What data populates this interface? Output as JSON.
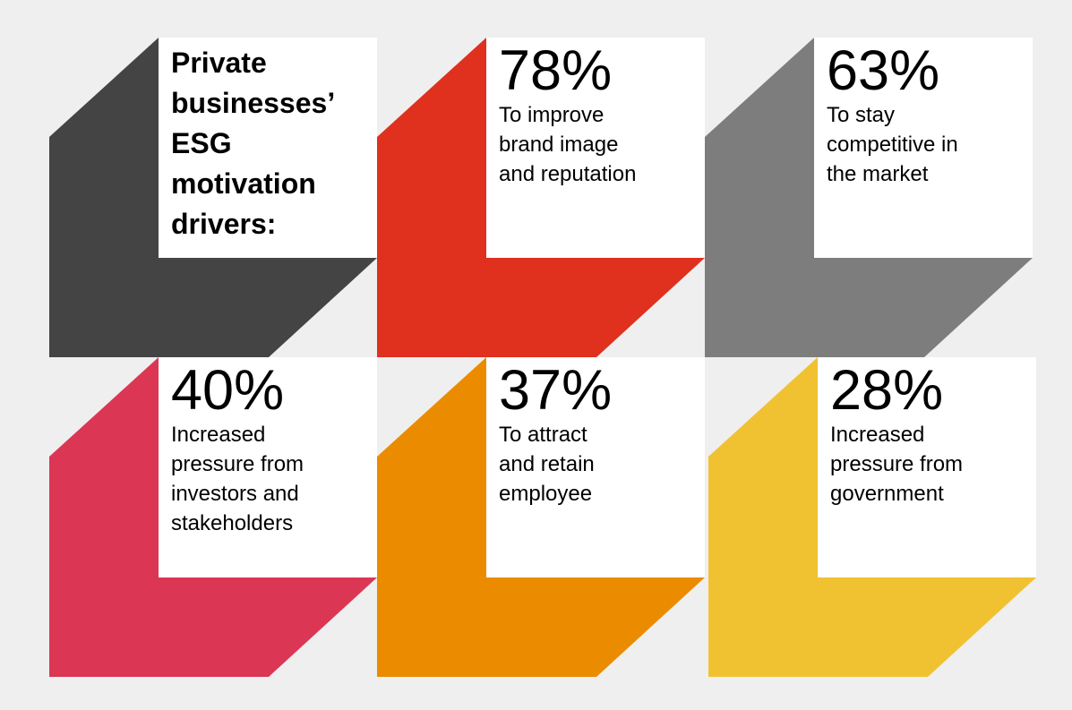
{
  "title": "Private businesses’ ESG motivation drivers:",
  "title_lines": [
    "Private",
    "businesses’",
    "ESG",
    "motivation",
    "drivers:"
  ],
  "colors": {
    "background": "#efefef",
    "title_tile": "#444444"
  },
  "drivers": [
    {
      "percent": "78%",
      "value": 78,
      "lines": [
        "To improve",
        "brand image",
        "and reputation"
      ],
      "color": "#e0301e"
    },
    {
      "percent": "63%",
      "value": 63,
      "lines": [
        "To stay",
        "competitive in",
        "the market"
      ],
      "color": "#7d7d7d"
    },
    {
      "percent": "40%",
      "value": 40,
      "lines": [
        "Increased",
        "pressure from",
        "investors and",
        "stakeholders"
      ],
      "color": "#db3755"
    },
    {
      "percent": "37%",
      "value": 37,
      "lines": [
        "To attract",
        "and retain",
        "employee"
      ],
      "color": "#eb8c00"
    },
    {
      "percent": "28%",
      "value": 28,
      "lines": [
        "Increased",
        "pressure from",
        "government"
      ],
      "color": "#f0c232"
    }
  ]
}
